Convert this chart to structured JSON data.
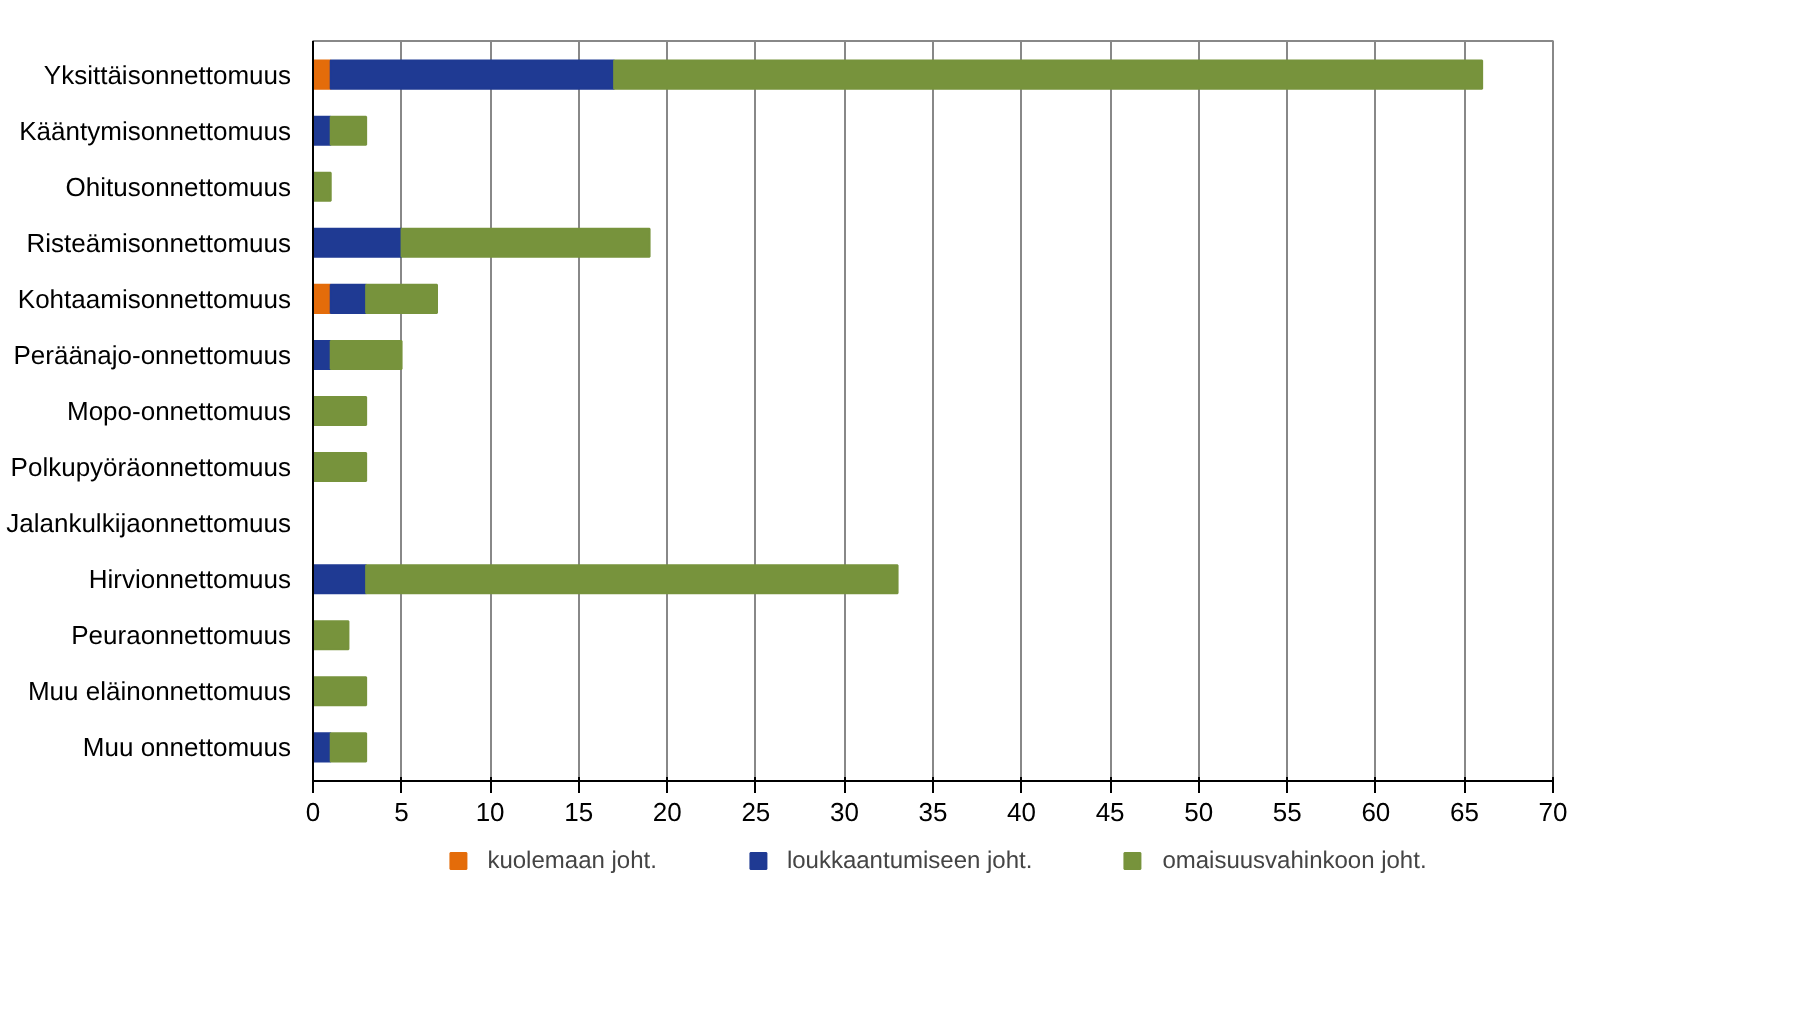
{
  "chart_data": {
    "type": "bar",
    "orientation": "horizontal",
    "stacked": true,
    "categories": [
      "Yksittäisonnettomuus",
      "Kääntymisonnettomuus",
      "Ohitusonnettomuus",
      "Risteämisonnettomuus",
      "Kohtaamisonnettomuus",
      "Peräänajo-onnettomuus",
      "Mopo-onnettomuus",
      "Polkupyöräonnettomuus",
      "Jalankulkijaonnettomuus",
      "Hirvionnettomuus",
      "Peuraonnettomuus",
      "Muu eläinonnettomuus",
      "Muu onnettomuus"
    ],
    "series": [
      {
        "name": "kuolemaan joht.",
        "color": "#e46c0a",
        "values": [
          1,
          0,
          0,
          0,
          1,
          0,
          0,
          0,
          0,
          0,
          0,
          0,
          0
        ]
      },
      {
        "name": "loukkaantumiseen joht.",
        "color": "#1f3a93",
        "values": [
          16,
          1,
          0,
          5,
          2,
          1,
          0,
          0,
          0,
          3,
          0,
          0,
          1
        ]
      },
      {
        "name": "omaisuusvahinkoon joht.",
        "color": "#77933c",
        "values": [
          49,
          2,
          1,
          14,
          4,
          4,
          3,
          3,
          0,
          30,
          2,
          3,
          2
        ]
      }
    ],
    "xlim": [
      0,
      70
    ],
    "xticks": [
      0,
      5,
      10,
      15,
      20,
      25,
      30,
      35,
      40,
      45,
      50,
      55,
      60,
      65,
      70
    ],
    "grid": "x",
    "legend": "bottom"
  }
}
